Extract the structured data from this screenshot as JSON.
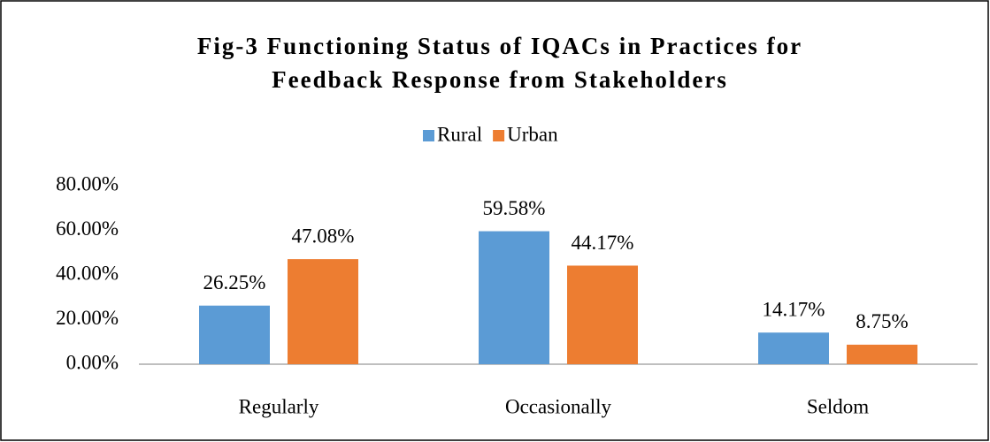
{
  "chart_data": {
    "type": "bar",
    "title": [
      "Fig-3 Functioning Status of IQACs in Practices for",
      "Feedback Response from Stakeholders"
    ],
    "categories": [
      "Regularly",
      "Occasionally",
      "Seldom"
    ],
    "series": [
      {
        "name": "Rural",
        "color": "#5b9bd5",
        "values": [
          26.25,
          59.58,
          14.17
        ],
        "value_labels": [
          "26.25%",
          "59.58%",
          "14.17%"
        ]
      },
      {
        "name": "Urban",
        "color": "#ed7d31",
        "values": [
          47.08,
          44.17,
          8.75
        ],
        "value_labels": [
          "47.08%",
          "44.17%",
          "8.75%"
        ]
      }
    ],
    "ylim": [
      0,
      80
    ],
    "yticks": [
      {
        "value": 0,
        "label": "0.00%"
      },
      {
        "value": 20,
        "label": "20.00%"
      },
      {
        "value": 40,
        "label": "40.00%"
      },
      {
        "value": 60,
        "label": "60.00%"
      },
      {
        "value": 80,
        "label": "80.00%"
      }
    ],
    "grid": false,
    "legend": "top"
  }
}
